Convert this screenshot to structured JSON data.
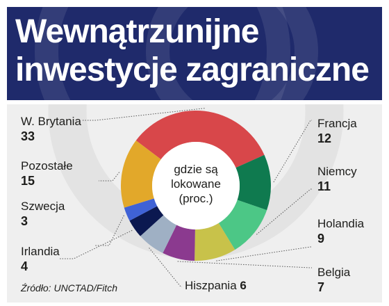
{
  "header": {
    "title_line1": "Wewnątrzunijne",
    "title_line2": "inwestycje zagraniczne"
  },
  "chart_data": {
    "type": "pie",
    "center_text": [
      "gdzie są",
      "lokowane",
      "(proc.)"
    ],
    "slices": [
      {
        "label": "W. Brytania",
        "value": 33,
        "color": "#d8474a"
      },
      {
        "label": "Francja",
        "value": 12,
        "color": "#0f7a4f"
      },
      {
        "label": "Niemcy",
        "value": 11,
        "color": "#4cc786"
      },
      {
        "label": "Holandia",
        "value": 9,
        "color": "#c8c24a"
      },
      {
        "label": "Belgia",
        "value": 7,
        "color": "#8b3a8f"
      },
      {
        "label": "Hiszpania",
        "value": 6,
        "color": "#9fb0c4"
      },
      {
        "label": "Irlandia",
        "value": 4,
        "color": "#0b1850"
      },
      {
        "label": "Szwecja",
        "value": 3,
        "color": "#3f62d6"
      },
      {
        "label": "Pozostałe",
        "value": 15,
        "color": "#e2a82a"
      }
    ]
  },
  "source": "Źródło: UNCTAD/Fitch"
}
